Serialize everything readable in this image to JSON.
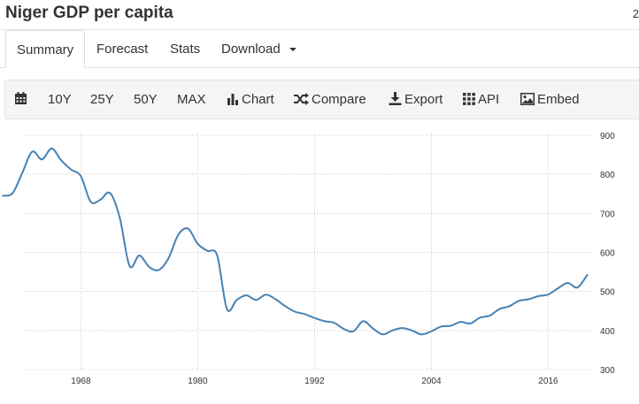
{
  "header": {
    "title": "Niger GDP per capita",
    "extra": "2"
  },
  "tabs": [
    {
      "label": "Summary"
    },
    {
      "label": "Forecast"
    },
    {
      "label": "Stats"
    },
    {
      "label": "Download"
    }
  ],
  "toolbar": {
    "ranges": [
      "10Y",
      "25Y",
      "50Y",
      "MAX"
    ],
    "chart_label": "Chart",
    "compare_label": "Compare",
    "export_label": "Export",
    "api_label": "API",
    "embed_label": "Embed"
  },
  "colors": {
    "line": "#4682b4",
    "grid": "#c8c8c8"
  },
  "icons": {
    "calendar": "calendar-icon",
    "chart": "bar-chart-icon",
    "compare": "shuffle-icon",
    "export": "download-icon",
    "api": "grid-icon",
    "embed": "image-icon"
  },
  "chart_data": {
    "type": "line",
    "title": "",
    "xlabel": "",
    "ylabel": "",
    "xlim": [
      1960.6,
      2020.6
    ],
    "ylim": [
      300,
      900
    ],
    "xticks": [
      1968,
      1980,
      1992,
      2004,
      2016
    ],
    "yticks": [
      300,
      400,
      500,
      600,
      700,
      800,
      900
    ],
    "grid": true,
    "y_axis_side": "right",
    "series": [
      {
        "x": [
          1960,
          1961,
          1962,
          1963,
          1964,
          1965,
          1966,
          1967,
          1968,
          1969,
          1970,
          1971,
          1972,
          1973,
          1974,
          1975,
          1976,
          1977,
          1978,
          1979,
          1980,
          1981,
          1982,
          1983,
          1984,
          1985,
          1986,
          1987,
          1988,
          1989,
          1990,
          1991,
          1992,
          1993,
          1994,
          1995,
          1996,
          1997,
          1998,
          1999,
          2000,
          2001,
          2002,
          2003,
          2004,
          2005,
          2006,
          2007,
          2008,
          2009,
          2010,
          2011,
          2012,
          2013,
          2014,
          2015,
          2016,
          2017,
          2018,
          2019,
          2020
        ],
        "y": [
          745,
          752,
          805,
          858,
          838,
          866,
          835,
          812,
          795,
          730,
          735,
          752,
          688,
          565,
          592,
          563,
          555,
          585,
          645,
          661,
          622,
          604,
          592,
          455,
          478,
          490,
          478,
          492,
          480,
          462,
          448,
          442,
          432,
          424,
          420,
          404,
          398,
          424,
          405,
          390,
          400,
          406,
          400,
          390,
          398,
          410,
          412,
          422,
          418,
          433,
          438,
          455,
          462,
          476,
          480,
          488,
          492,
          508,
          522,
          510,
          542
        ]
      }
    ]
  }
}
